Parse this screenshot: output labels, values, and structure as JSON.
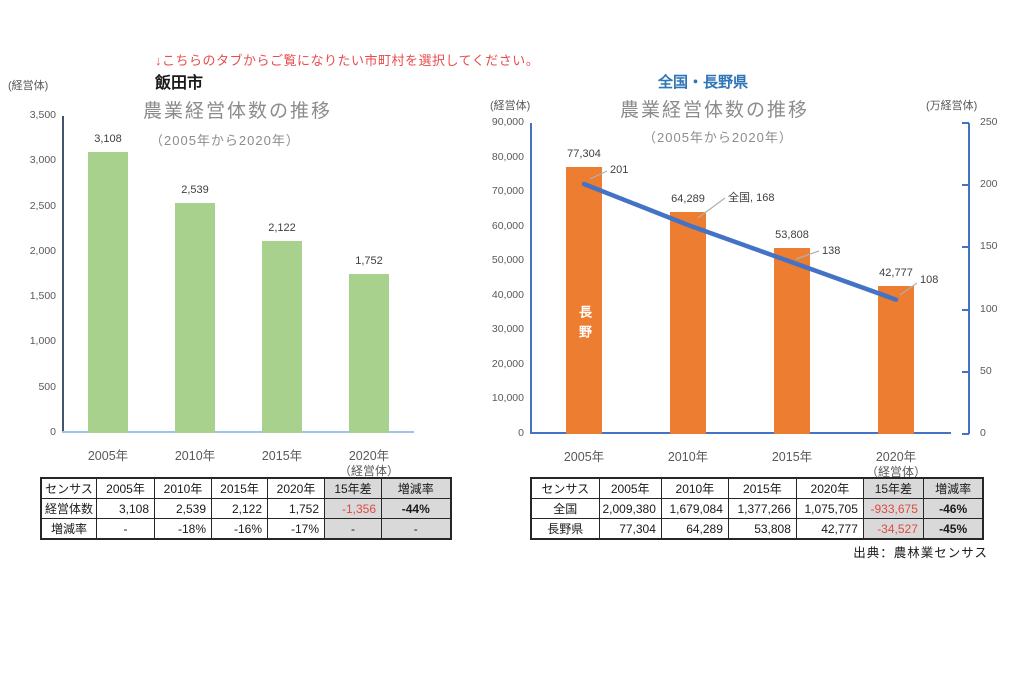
{
  "note": {
    "text": "↓こちらのタブからご覧になりたい市町村を選択してください。"
  },
  "source_label": "出典：農林業センサス",
  "colors": {
    "bar_green": "#a9d18e",
    "bar_orange": "#ed7d31",
    "line_blue": "#4472c4",
    "region_title_blue": "#2e75b6",
    "note_red": "#e84c4c",
    "negative_red": "#e04a42",
    "table_shade": "#d9d9d9",
    "axis_dark": "#44546a",
    "axis_light_blue": "#9dc3e6",
    "axis_blue": "#4472c4",
    "tick_text": "#595959"
  },
  "chart_data": [
    {
      "type": "bar",
      "region": "飯田市",
      "title": "農業経営体数の推移",
      "period": "（2005年から2020年）",
      "ylabel": "(経営体)",
      "xunit": "（経営体）",
      "categories": [
        "2005年",
        "2010年",
        "2015年",
        "2020年"
      ],
      "values": [
        3108,
        2539,
        2122,
        1752
      ],
      "value_labels": [
        "3,108",
        "2,539",
        "2,122",
        "1,752"
      ],
      "ylim": [
        0,
        3500
      ],
      "ytick_step": 500,
      "bar_color": "#a9d18e",
      "grid": false,
      "legend": "none"
    },
    {
      "type": "bar+line",
      "region": "全国・長野県",
      "title": "農業経営体数の推移",
      "period": "（2005年から2020年）",
      "ylabel_left": "(経営体)",
      "ylabel_right": "(万経営体)",
      "xunit": "（経営体）",
      "categories": [
        "2005年",
        "2010年",
        "2015年",
        "2020年"
      ],
      "series": [
        {
          "name": "長野県",
          "type": "bar",
          "axis": "left",
          "in_bar_label": "長野",
          "values": [
            77304,
            64289,
            53808,
            42777
          ],
          "value_labels": [
            "77,304",
            "64,289",
            "53,808",
            "42,777"
          ],
          "color": "#ed7d31"
        },
        {
          "name": "全国",
          "type": "line",
          "axis": "right",
          "values": [
            201,
            168,
            138,
            108
          ],
          "point_labels": [
            "201",
            "全国, 168",
            "138",
            "108"
          ],
          "color": "#4472c4"
        }
      ],
      "ylim_left": [
        0,
        90000
      ],
      "ytick_step_left": 10000,
      "ylim_right": [
        0,
        250
      ],
      "ytick_step_right": 50,
      "grid": false,
      "legend": "none"
    }
  ],
  "tables": [
    {
      "header": [
        "センサス",
        "2005年",
        "2010年",
        "2015年",
        "2020年",
        "15年差",
        "増減率"
      ],
      "rows": [
        {
          "label": "経営体数",
          "cells": [
            "3,108",
            "2,539",
            "2,122",
            "1,752",
            "-1,356",
            "-44%"
          ]
        },
        {
          "label": "増減率",
          "cells": [
            "-",
            "-18%",
            "-16%",
            "-17%",
            "-",
            "-"
          ]
        }
      ]
    },
    {
      "header": [
        "センサス",
        "2005年",
        "2010年",
        "2015年",
        "2020年",
        "15年差",
        "増減率"
      ],
      "rows": [
        {
          "label": "全国",
          "cells": [
            "2,009,380",
            "1,679,084",
            "1,377,266",
            "1,075,705",
            "-933,675",
            "-46%"
          ]
        },
        {
          "label": "長野県",
          "cells": [
            "77,304",
            "64,289",
            "53,808",
            "42,777",
            "-34,527",
            "-45%"
          ]
        }
      ]
    }
  ]
}
